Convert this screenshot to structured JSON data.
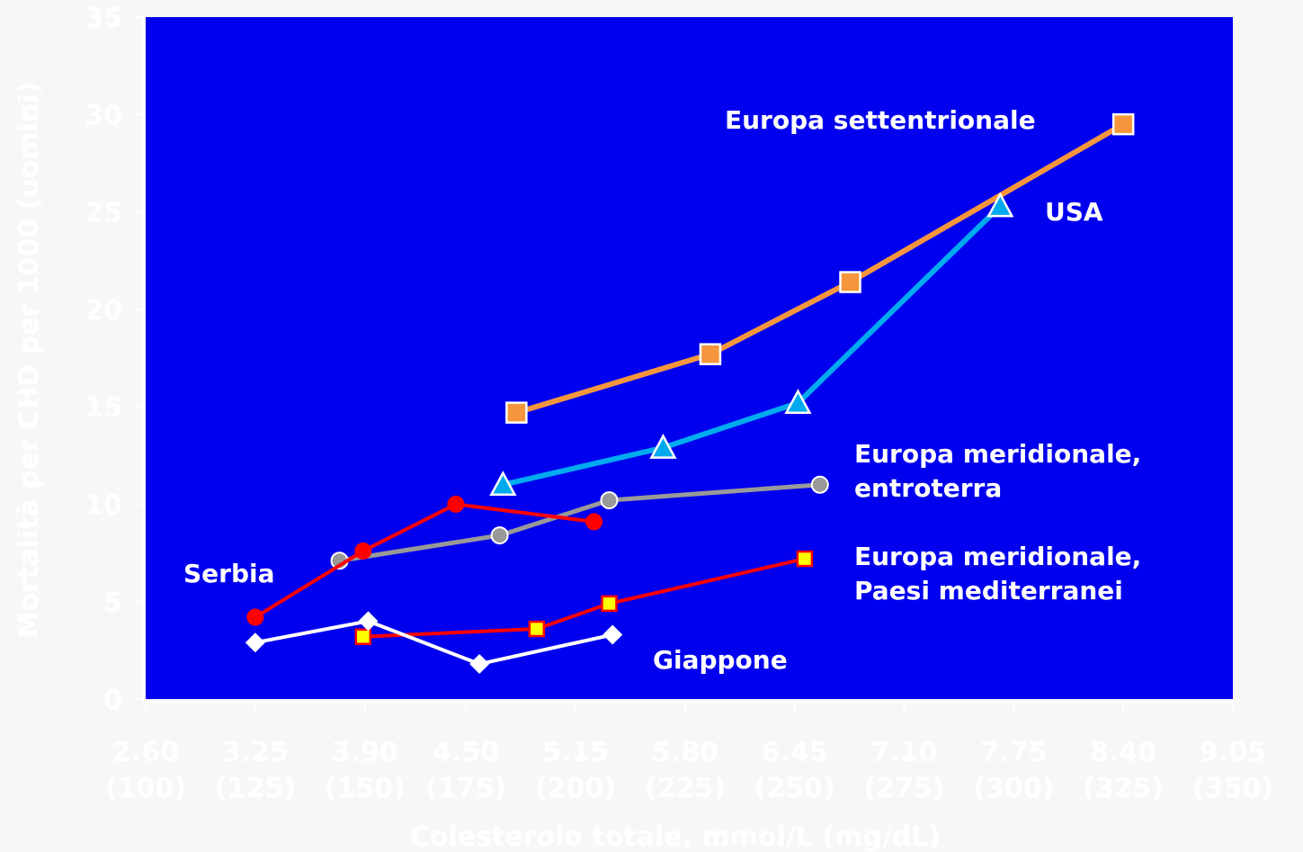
{
  "chart_data": {
    "type": "line",
    "title": "",
    "xlabel": "Colesterolo totale, mmol/L (mg/dL)",
    "ylabel": "Mortalità per CHD per 1000 (uomini)",
    "ylim": [
      0,
      35
    ],
    "yticks": [
      0,
      5,
      10,
      15,
      20,
      25,
      30,
      35
    ],
    "xlim": [
      2.6,
      9.05
    ],
    "xticks": [
      {
        "value": 2.6,
        "line1": "2.60",
        "line2": "(100)"
      },
      {
        "value": 3.25,
        "line1": "3.25",
        "line2": "(125)"
      },
      {
        "value": 3.9,
        "line1": "3.90",
        "line2": "(150)"
      },
      {
        "value": 4.5,
        "line1": "4.50",
        "line2": "(175)"
      },
      {
        "value": 5.15,
        "line1": "5.15",
        "line2": "(200)"
      },
      {
        "value": 5.8,
        "line1": "5.80",
        "line2": "(225)"
      },
      {
        "value": 6.45,
        "line1": "6.45",
        "line2": "(250)"
      },
      {
        "value": 7.1,
        "line1": "7.10",
        "line2": "(275)"
      },
      {
        "value": 7.75,
        "line1": "7.75",
        "line2": "(300)"
      },
      {
        "value": 8.4,
        "line1": "8.40",
        "line2": "(325)"
      },
      {
        "value": 9.05,
        "line1": "9.05",
        "line2": "(350)"
      }
    ],
    "grid": false,
    "plot_background": "#0000ee",
    "series": [
      {
        "id": "europa-settentrionale",
        "label_lines": [
          "Europa settentrionale"
        ],
        "color": "#f5963c",
        "marker": "square",
        "marker_fill": "#f5963c",
        "x": [
          4.8,
          5.95,
          6.78,
          8.4
        ],
        "y": [
          14.7,
          17.7,
          21.4,
          29.5
        ]
      },
      {
        "id": "usa",
        "label_lines": [
          "USA"
        ],
        "color": "#00aaee",
        "marker": "triangle",
        "marker_fill": "#00aaee",
        "x": [
          4.72,
          5.67,
          6.47,
          7.67
        ],
        "y": [
          11.0,
          12.9,
          15.2,
          25.3
        ]
      },
      {
        "id": "europa-meridionale-entroterra",
        "label_lines": [
          "Europa meridionale,",
          "entroterra"
        ],
        "color": "#999999",
        "marker": "circle",
        "marker_fill": "#999999",
        "x": [
          3.75,
          4.7,
          5.35,
          6.6
        ],
        "y": [
          7.1,
          8.4,
          10.2,
          11.0
        ]
      },
      {
        "id": "serbia",
        "label_lines": [
          "Serbia"
        ],
        "color": "#ff0000",
        "marker": "circle",
        "marker_fill": "#ff0000",
        "x": [
          3.25,
          3.89,
          4.44,
          5.26
        ],
        "y": [
          4.2,
          7.6,
          10.0,
          9.1
        ]
      },
      {
        "id": "europa-meridionale-mediterranei",
        "label_lines": [
          "Europa meridionale,",
          "Paesi mediterranei"
        ],
        "color": "#ff0000",
        "marker": "square",
        "marker_fill": "#ffff00",
        "x": [
          3.89,
          4.92,
          5.35,
          6.51
        ],
        "y": [
          3.2,
          3.6,
          4.9,
          7.2
        ]
      },
      {
        "id": "giappone",
        "label_lines": [
          "Giappone"
        ],
        "color": "#ffffff",
        "marker": "diamond",
        "marker_fill": "#ffffff",
        "x": [
          3.25,
          3.92,
          4.58,
          5.37
        ],
        "y": [
          2.9,
          4.0,
          1.8,
          3.3
        ]
      }
    ]
  }
}
